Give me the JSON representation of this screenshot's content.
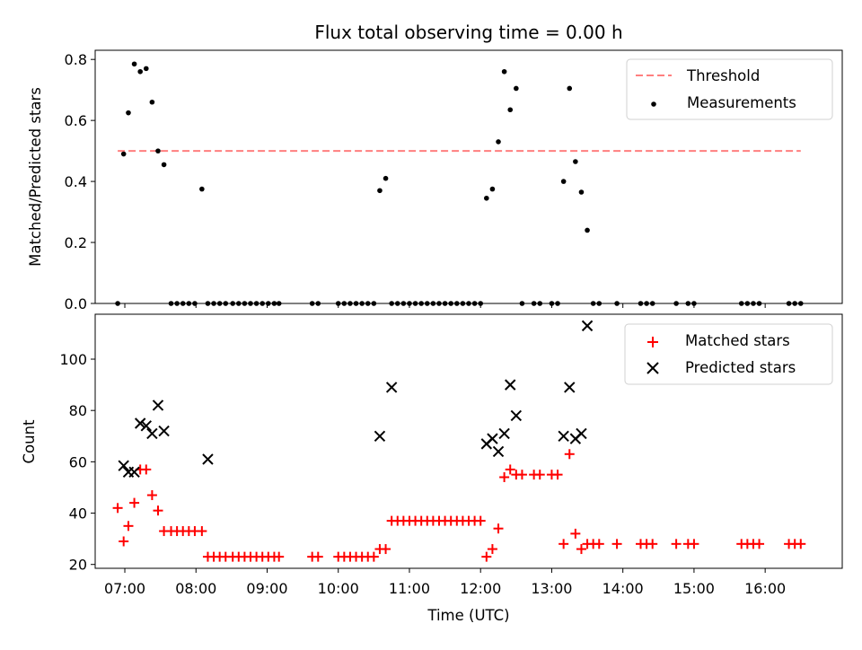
{
  "figure": {
    "title": "Flux total observing time = 0.00 h",
    "xlabel": "Time (UTC)"
  },
  "chart_data": [
    {
      "type": "scatter",
      "name": "top",
      "ylabel": "Matched/Predicted stars",
      "xlim": [
        "06:35",
        "17:05"
      ],
      "ylim": [
        0,
        0.83
      ],
      "yticks": [
        0.0,
        0.2,
        0.4,
        0.6,
        0.8
      ],
      "ytick_labels": [
        "0.0",
        "0.2",
        "0.4",
        "0.6",
        "0.8"
      ],
      "threshold": {
        "name": "Threshold",
        "y": 0.5,
        "x_start": "06:54",
        "x_end": "16:30",
        "color": "#ff7f7f"
      },
      "series": [
        {
          "name": "Measurements",
          "color": "#000000",
          "x": [
            "06:54",
            "06:59",
            "07:03",
            "07:08",
            "07:13",
            "07:18",
            "07:23",
            "07:28",
            "07:33",
            "07:39",
            "07:44",
            "07:49",
            "07:54",
            "07:59",
            "08:05",
            "08:10",
            "08:15",
            "08:20",
            "08:25",
            "08:31",
            "08:36",
            "08:41",
            "08:46",
            "08:51",
            "08:56",
            "09:01",
            "09:06",
            "09:10",
            "09:38",
            "09:43",
            "10:00",
            "10:05",
            "10:10",
            "10:15",
            "10:20",
            "10:25",
            "10:30",
            "10:35",
            "10:40",
            "10:45",
            "10:50",
            "10:55",
            "11:00",
            "11:05",
            "11:10",
            "11:15",
            "11:20",
            "11:25",
            "11:30",
            "11:35",
            "11:40",
            "11:45",
            "11:50",
            "11:55",
            "12:00",
            "12:05",
            "12:10",
            "12:15",
            "12:20",
            "12:25",
            "12:30",
            "12:35",
            "12:45",
            "12:50",
            "13:00",
            "13:05",
            "13:10",
            "13:15",
            "13:20",
            "13:25",
            "13:30",
            "13:35",
            "13:40",
            "13:55",
            "14:15",
            "14:20",
            "14:25",
            "14:45",
            "14:55",
            "15:00",
            "15:40",
            "15:45",
            "15:50",
            "15:55",
            "16:20",
            "16:25",
            "16:30"
          ],
          "y": [
            0,
            0.49,
            0.625,
            0.785,
            0.76,
            0.77,
            0.66,
            0.5,
            0.455,
            0,
            0,
            0,
            0,
            0,
            0.375,
            0,
            0,
            0,
            0,
            0,
            0,
            0,
            0,
            0,
            0,
            0,
            0,
            0,
            0,
            0,
            0,
            0,
            0,
            0,
            0,
            0,
            0,
            0.37,
            0.41,
            0,
            0,
            0,
            0,
            0,
            0,
            0,
            0,
            0,
            0,
            0,
            0,
            0,
            0,
            0,
            0,
            0.345,
            0.375,
            0.53,
            0.76,
            0.635,
            0.705,
            0,
            0,
            0,
            0,
            0,
            0.4,
            0.705,
            0.465,
            0.365,
            0.24,
            0,
            0,
            0,
            0,
            0,
            0,
            0,
            0,
            0,
            0,
            0,
            0,
            0,
            0,
            0,
            0
          ]
        }
      ]
    },
    {
      "type": "scatter",
      "name": "bottom",
      "ylabel": "Count",
      "xlim": [
        "06:35",
        "17:05"
      ],
      "ylim": [
        18.5,
        117.5
      ],
      "yticks": [
        20,
        40,
        60,
        80,
        100
      ],
      "ytick_labels": [
        "20",
        "40",
        "60",
        "80",
        "100"
      ],
      "xticks": [
        "07:00",
        "08:00",
        "09:00",
        "10:00",
        "11:00",
        "12:00",
        "13:00",
        "14:00",
        "15:00",
        "16:00"
      ],
      "xtick_labels": [
        "07:00",
        "08:00",
        "09:00",
        "10:00",
        "11:00",
        "12:00",
        "13:00",
        "14:00",
        "15:00",
        "16:00"
      ],
      "series": [
        {
          "name": "Matched stars",
          "marker": "plus",
          "color": "#ff0000",
          "x": [
            "06:54",
            "06:59",
            "07:03",
            "07:08",
            "07:13",
            "07:18",
            "07:23",
            "07:28",
            "07:33",
            "07:39",
            "07:44",
            "07:49",
            "07:54",
            "07:59",
            "08:05",
            "08:10",
            "08:15",
            "08:20",
            "08:25",
            "08:31",
            "08:36",
            "08:41",
            "08:46",
            "08:51",
            "08:56",
            "09:01",
            "09:06",
            "09:10",
            "09:38",
            "09:43",
            "10:00",
            "10:05",
            "10:10",
            "10:15",
            "10:20",
            "10:25",
            "10:30",
            "10:35",
            "10:40",
            "10:45",
            "10:50",
            "10:55",
            "11:00",
            "11:05",
            "11:10",
            "11:15",
            "11:20",
            "11:25",
            "11:30",
            "11:35",
            "11:40",
            "11:45",
            "11:50",
            "11:55",
            "12:00",
            "12:05",
            "12:10",
            "12:15",
            "12:20",
            "12:25",
            "12:30",
            "12:35",
            "12:45",
            "12:50",
            "13:00",
            "13:05",
            "13:10",
            "13:15",
            "13:20",
            "13:25",
            "13:30",
            "13:35",
            "13:40",
            "13:55",
            "14:15",
            "14:20",
            "14:25",
            "14:45",
            "14:55",
            "15:00",
            "15:40",
            "15:45",
            "15:50",
            "15:55",
            "16:20",
            "16:25",
            "16:30"
          ],
          "y": [
            42,
            29,
            35,
            44,
            57,
            57,
            47,
            41,
            33,
            33,
            33,
            33,
            33,
            33,
            33,
            23,
            23,
            23,
            23,
            23,
            23,
            23,
            23,
            23,
            23,
            23,
            23,
            23,
            23,
            23,
            23,
            23,
            23,
            23,
            23,
            23,
            23,
            26,
            26,
            37,
            37,
            37,
            37,
            37,
            37,
            37,
            37,
            37,
            37,
            37,
            37,
            37,
            37,
            37,
            37,
            23,
            26,
            34,
            54,
            57,
            55,
            55,
            55,
            55,
            55,
            55,
            28,
            63,
            32,
            26,
            28,
            28,
            28,
            28,
            28,
            28,
            28,
            28,
            28,
            28,
            28,
            28,
            28,
            28,
            28,
            28,
            28
          ]
        },
        {
          "name": "Predicted stars",
          "marker": "x",
          "color": "#000000",
          "x": [
            "06:59",
            "07:03",
            "07:08",
            "07:13",
            "07:18",
            "07:23",
            "07:28",
            "07:33",
            "08:10",
            "10:35",
            "10:45",
            "12:05",
            "12:10",
            "12:15",
            "12:20",
            "12:25",
            "12:30",
            "13:10",
            "13:15",
            "13:20",
            "13:25",
            "13:30"
          ],
          "y": [
            58.5,
            56,
            56,
            75,
            74,
            71,
            82,
            72,
            61,
            70,
            89,
            67,
            69,
            64,
            71,
            90,
            78,
            70,
            89,
            69,
            71,
            113
          ]
        }
      ]
    }
  ]
}
